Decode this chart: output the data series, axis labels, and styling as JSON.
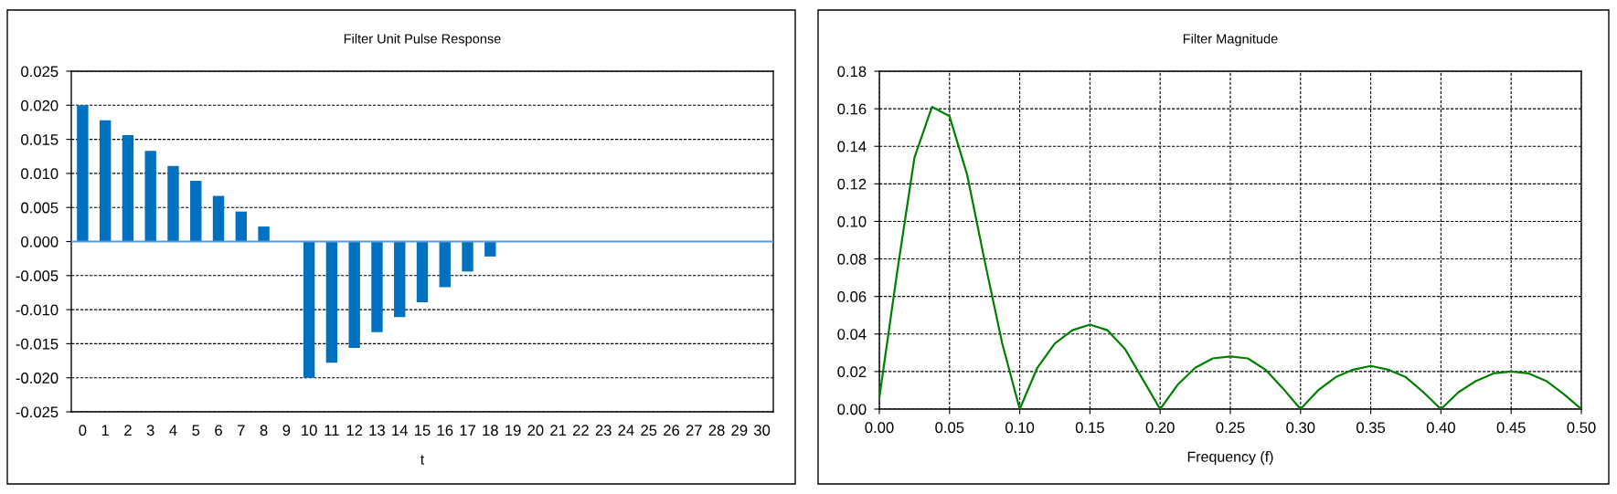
{
  "chart_data": [
    {
      "type": "bar",
      "title": "Filter Unit Pulse Response",
      "xlabel": "t",
      "categories": [
        "0",
        "1",
        "2",
        "3",
        "4",
        "5",
        "6",
        "7",
        "8",
        "9",
        "10",
        "11",
        "12",
        "13",
        "14",
        "15",
        "16",
        "17",
        "18",
        "19",
        "20",
        "21",
        "22",
        "23",
        "24",
        "25",
        "26",
        "27",
        "28",
        "29",
        "30"
      ],
      "values": [
        0.02,
        0.0178,
        0.0156,
        0.0133,
        0.0111,
        0.0089,
        0.0067,
        0.0044,
        0.0022,
        0,
        -0.02,
        -0.0178,
        -0.0156,
        -0.0133,
        -0.0111,
        -0.0089,
        -0.0067,
        -0.0044,
        -0.0022,
        0,
        0,
        0,
        0,
        0,
        0,
        0,
        0,
        0,
        0,
        0,
        0
      ],
      "color": "#0070c0",
      "ylim": [
        -0.025,
        0.025
      ],
      "yticks": [
        {
          "value": -0.025,
          "label": "-0.025"
        },
        {
          "value": -0.02,
          "label": "-0.020"
        },
        {
          "value": -0.015,
          "label": "-0.015"
        },
        {
          "value": -0.01,
          "label": "-0.010"
        },
        {
          "value": -0.005,
          "label": "-0.005"
        },
        {
          "value": 0,
          "label": "0.000"
        },
        {
          "value": 0.005,
          "label": "0.005"
        },
        {
          "value": 0.01,
          "label": "0.010"
        },
        {
          "value": 0.015,
          "label": "0.015"
        },
        {
          "value": 0.02,
          "label": "0.020"
        },
        {
          "value": 0.025,
          "label": "0.025"
        }
      ],
      "grid": "y",
      "ref_lines": [
        {
          "axis": "y",
          "value": 0,
          "color": "#5b9bd5"
        }
      ]
    },
    {
      "type": "line",
      "title": "Filter Magnitude",
      "xlabel": "Frequency (f)",
      "x": [
        0,
        0.0125,
        0.025,
        0.0375,
        0.05,
        0.0625,
        0.075,
        0.0875,
        0.1,
        0.1125,
        0.125,
        0.1375,
        0.15,
        0.1625,
        0.175,
        0.1875,
        0.2,
        0.2125,
        0.225,
        0.2375,
        0.25,
        0.2625,
        0.275,
        0.2875,
        0.3,
        0.3125,
        0.325,
        0.3375,
        0.35,
        0.3625,
        0.375,
        0.3875,
        0.4,
        0.4125,
        0.425,
        0.4375,
        0.45,
        0.4625,
        0.475,
        0.4875,
        0.5
      ],
      "values": [
        0.006,
        0.072,
        0.134,
        0.161,
        0.156,
        0.125,
        0.079,
        0.035,
        0,
        0.022,
        0.035,
        0.042,
        0.045,
        0.042,
        0.032,
        0.016,
        0,
        0.013,
        0.022,
        0.027,
        0.028,
        0.027,
        0.021,
        0.011,
        0,
        0.01,
        0.017,
        0.021,
        0.023,
        0.021,
        0.017,
        0.009,
        0,
        0.009,
        0.015,
        0.019,
        0.02,
        0.019,
        0.015,
        0.008,
        0
      ],
      "color": "#008000",
      "xlim": [
        0,
        0.5
      ],
      "xticks": [
        {
          "value": 0,
          "label": "0.00"
        },
        {
          "value": 0.05,
          "label": "0.05"
        },
        {
          "value": 0.1,
          "label": "0.10"
        },
        {
          "value": 0.15,
          "label": "0.15"
        },
        {
          "value": 0.2,
          "label": "0.20"
        },
        {
          "value": 0.25,
          "label": "0.25"
        },
        {
          "value": 0.3,
          "label": "0.30"
        },
        {
          "value": 0.35,
          "label": "0.35"
        },
        {
          "value": 0.4,
          "label": "0.40"
        },
        {
          "value": 0.45,
          "label": "0.45"
        },
        {
          "value": 0.5,
          "label": "0.50"
        }
      ],
      "ylim": [
        0,
        0.18
      ],
      "yticks": [
        {
          "value": 0,
          "label": "0.00"
        },
        {
          "value": 0.02,
          "label": "0.02"
        },
        {
          "value": 0.04,
          "label": "0.04"
        },
        {
          "value": 0.06,
          "label": "0.06"
        },
        {
          "value": 0.08,
          "label": "0.08"
        },
        {
          "value": 0.1,
          "label": "0.10"
        },
        {
          "value": 0.12,
          "label": "0.12"
        },
        {
          "value": 0.14,
          "label": "0.14"
        },
        {
          "value": 0.16,
          "label": "0.16"
        },
        {
          "value": 0.18,
          "label": "0.18"
        }
      ],
      "grid": true
    }
  ]
}
